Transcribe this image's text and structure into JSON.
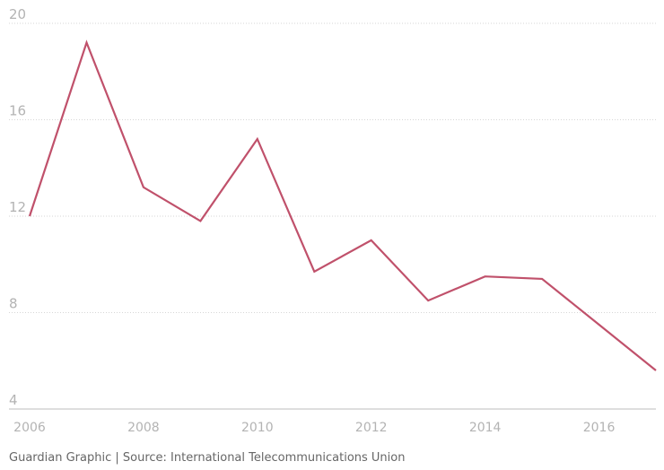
{
  "chart_data": {
    "type": "line",
    "title": "",
    "xlabel": "",
    "ylabel": "",
    "x": [
      2006,
      2007,
      2008,
      2009,
      2010,
      2011,
      2012,
      2013,
      2014,
      2015,
      2016,
      2017
    ],
    "series": [
      {
        "name": "",
        "values": [
          12.0,
          19.2,
          13.2,
          11.8,
          15.2,
          9.7,
          11.0,
          8.5,
          9.5,
          9.4,
          7.5,
          5.6
        ]
      }
    ],
    "xlim": [
      2006,
      2017
    ],
    "ylim": [
      4,
      20
    ],
    "yticks": [
      4,
      8,
      12,
      16,
      20
    ],
    "xticks": [
      2006,
      2008,
      2010,
      2012,
      2014,
      2016
    ],
    "colors": {
      "line": "#c0516b",
      "grid": "#d6d6d6",
      "tick": "#b3b3b3"
    }
  },
  "footer": {
    "source": "Guardian Graphic | Source: International Telecommunications Union"
  }
}
